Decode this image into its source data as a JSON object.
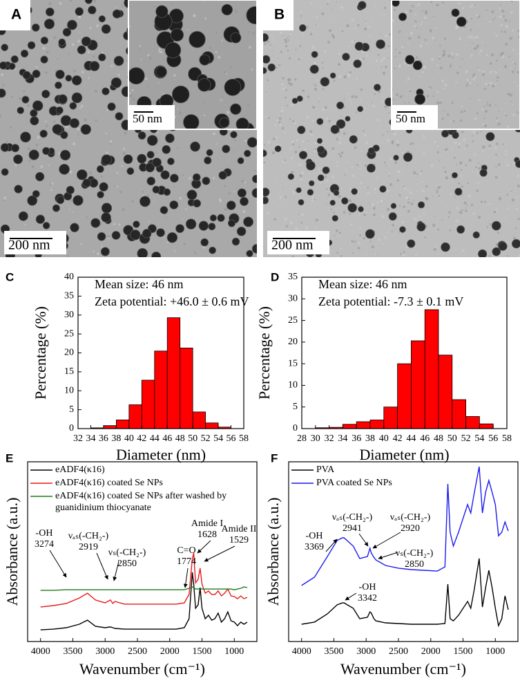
{
  "images": [
    {
      "label": "A",
      "scale_bar": "200 nm",
      "inset_scale_bar": "50 nm"
    },
    {
      "label": "B",
      "scale_bar": "200 nm",
      "inset_scale_bar": "50 nm"
    }
  ],
  "chart_data": [
    {
      "type": "histogram",
      "label": "C",
      "annotations": [
        "Mean size: 46 nm",
        "Zeta potential: +46.0 ± 0.6 mV"
      ],
      "bins": [
        34,
        36,
        38,
        40,
        42,
        44,
        46,
        48,
        50,
        52,
        54,
        56
      ],
      "values": [
        0.2,
        0.8,
        2.3,
        6.3,
        12.8,
        20.5,
        29.3,
        21.3,
        4.4,
        1.5,
        0.4
      ],
      "color": "#ff0000",
      "xlim": [
        32,
        58
      ],
      "xticks": [
        32,
        34,
        36,
        38,
        40,
        42,
        44,
        46,
        48,
        50,
        52,
        54,
        56,
        58
      ],
      "ylim": [
        0,
        40
      ],
      "yticks": [
        0,
        5,
        10,
        15,
        20,
        25,
        30,
        35,
        40
      ],
      "xlabel": "Diameter (nm)",
      "ylabel": "Percentage (%)"
    },
    {
      "type": "histogram",
      "label": "D",
      "annotations": [
        "Mean size: 46 nm",
        "Zeta potential: -7.3 ± 0.1 mV"
      ],
      "bins": [
        30,
        32,
        34,
        36,
        38,
        40,
        42,
        44,
        46,
        48,
        50,
        52,
        54,
        56
      ],
      "values": [
        0.2,
        0.3,
        1,
        1.6,
        2,
        5,
        15,
        20.3,
        27.5,
        17,
        6.7,
        2.8,
        1.1
      ],
      "color": "#ff0000",
      "xlim": [
        28,
        58
      ],
      "xticks": [
        28,
        30,
        32,
        34,
        36,
        38,
        40,
        42,
        44,
        46,
        48,
        50,
        52,
        54,
        56,
        58
      ],
      "ylim": [
        0,
        35
      ],
      "yticks": [
        0,
        5,
        10,
        15,
        20,
        25,
        30,
        35
      ],
      "xlabel": "Diameter (nm)",
      "ylabel": "Percentage (%)"
    },
    {
      "type": "line",
      "label": "E",
      "x": [
        4000,
        3800,
        3600,
        3400,
        3274,
        3150,
        3000,
        2919,
        2880,
        2850,
        2700,
        2500,
        2300,
        2100,
        1900,
        1774,
        1700,
        1650,
        1628,
        1600,
        1560,
        1529,
        1500,
        1450,
        1400,
        1350,
        1300,
        1250,
        1200,
        1150,
        1100,
        1050,
        1000,
        950,
        900,
        850,
        800
      ],
      "series": [
        {
          "name": "eADF4(κ16)",
          "color": "#000000",
          "values": [
            6.5,
            6.9,
            7.7,
            9.6,
            11.9,
            8.5,
            7.7,
            8.1,
            7.7,
            7.3,
            6.9,
            6.9,
            6.9,
            6.9,
            6.9,
            7.7,
            12.7,
            38.5,
            31.9,
            18.5,
            20.4,
            30,
            18.5,
            12.7,
            14.6,
            11.9,
            12.7,
            15.8,
            10.8,
            12.7,
            16.5,
            11.5,
            10.8,
            8.8,
            10.8,
            9.6,
            10.8
          ]
        },
        {
          "name": "eADF4(κ16) coated Se NPs",
          "color": "#e8191a",
          "values": [
            19.2,
            20,
            21.2,
            24.2,
            26.9,
            23.1,
            21.5,
            23.1,
            21.2,
            22.3,
            20.8,
            20.8,
            20.8,
            20.8,
            20.8,
            21.5,
            26.2,
            46.2,
            49.2,
            32.7,
            34.6,
            40.8,
            31.9,
            26.9,
            28.1,
            26.2,
            26.2,
            28.1,
            25.4,
            26.9,
            29.2,
            25.4,
            25,
            23.8,
            25.4,
            23.8,
            24.6
          ]
        },
        {
          "name": "eADF4(κ16) coated Se NPs after washed by guanidinium thiocyanate",
          "color": "#1a7a1a",
          "values": [
            28.5,
            28.5,
            28.8,
            28.8,
            28.8,
            28.8,
            28.8,
            28.8,
            28.8,
            28.8,
            28.8,
            28.8,
            28.8,
            28.8,
            28.8,
            28.8,
            29.6,
            30.4,
            30,
            29.2,
            29.2,
            29.6,
            29.2,
            29.2,
            29.2,
            29.2,
            29.2,
            29.2,
            29.2,
            29.2,
            29.2,
            29.2,
            28.8,
            29.2,
            29.6,
            30.4,
            30
          ]
        }
      ],
      "annotations": [
        {
          "lines": [
            "-OH",
            "3274"
          ]
        },
        {
          "lines": [
            "νₐₛ(-CH₂-)",
            "2919"
          ]
        },
        {
          "lines": [
            "νₛ(-CH₂-)",
            "2850"
          ]
        },
        {
          "lines": [
            "Amide I",
            "1628"
          ]
        },
        {
          "lines": [
            "Amide II",
            "1529"
          ]
        },
        {
          "lines": [
            "C=O",
            "1774"
          ]
        }
      ],
      "xlim": [
        4200,
        650
      ],
      "xticks": [
        4000,
        3500,
        3000,
        2500,
        2000,
        1500,
        1000
      ],
      "ylim": [
        0,
        100
      ],
      "xlabel": "Wavenumber (cm⁻¹)",
      "ylabel": "Absorbance (a.u.)"
    },
    {
      "type": "line",
      "label": "F",
      "x": [
        4000,
        3800,
        3600,
        3450,
        3369,
        3342,
        3200,
        3100,
        2980,
        2941,
        2920,
        2880,
        2850,
        2700,
        2500,
        2300,
        2100,
        1900,
        1780,
        1735,
        1700,
        1650,
        1570,
        1430,
        1380,
        1330,
        1250,
        1200,
        1150,
        1100,
        1050,
        1000,
        950,
        900,
        850,
        800
      ],
      "series": [
        {
          "name": "PVA",
          "color": "#000000",
          "values": [
            9.6,
            10.8,
            15.4,
            20.4,
            21.5,
            21.5,
            18.5,
            12.7,
            13.5,
            16.5,
            15.8,
            12.7,
            11.5,
            10.4,
            10,
            9.6,
            9.6,
            9.6,
            10,
            31.9,
            12.7,
            11.5,
            14.6,
            22.3,
            18.5,
            28.1,
            46.2,
            19.2,
            30,
            39.6,
            30,
            18.5,
            8.8,
            12.7,
            25.4,
            17.7
          ]
        },
        {
          "name": "PVA coated Se NPs",
          "color": "#1a1aee",
          "values": [
            31.2,
            35.8,
            47.3,
            56.2,
            57.7,
            57.7,
            53.1,
            46.2,
            47.3,
            51.9,
            49.2,
            46.9,
            45.4,
            42.3,
            40.8,
            40,
            39.6,
            39.2,
            41.5,
            87.7,
            60.8,
            53.1,
            60.8,
            76.2,
            71.5,
            81.9,
            97.3,
            71.5,
            83.1,
            89.6,
            83.1,
            76.2,
            58.8,
            60.8,
            66.5,
            61.5
          ]
        }
      ],
      "annotations": [
        {
          "lines": [
            "-OH",
            "3369"
          ]
        },
        {
          "lines": [
            "νₐₛ(-CH₂-)",
            "2941"
          ]
        },
        {
          "lines": [
            "νₐₛ(-CH₂-)",
            "2920"
          ]
        },
        {
          "lines": [
            "νₛ(-CH₂-)",
            "2850"
          ]
        },
        {
          "lines": [
            "-OH",
            "3342"
          ]
        }
      ],
      "xlim": [
        4200,
        650
      ],
      "xticks": [
        4000,
        3500,
        3000,
        2500,
        2000,
        1500,
        1000
      ],
      "ylim": [
        0,
        100
      ],
      "xlabel": "Wavenumber (cm⁻¹)",
      "ylabel": "Absorbance (a.u.)"
    }
  ]
}
